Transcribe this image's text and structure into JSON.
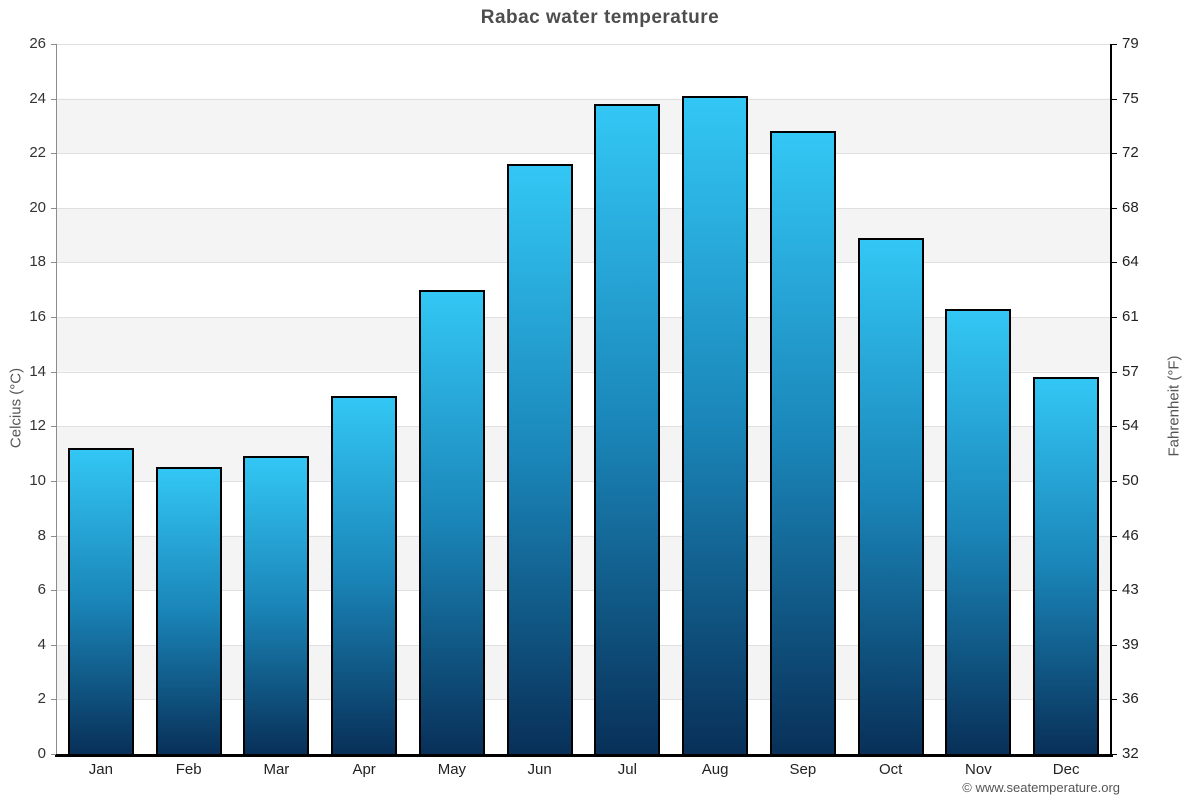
{
  "chart_data": {
    "type": "bar",
    "title": "Rabac water temperature",
    "categories": [
      "Jan",
      "Feb",
      "Mar",
      "Apr",
      "May",
      "Jun",
      "Jul",
      "Aug",
      "Sep",
      "Oct",
      "Nov",
      "Dec"
    ],
    "values_celsius": [
      11.2,
      10.5,
      10.9,
      13.1,
      17.0,
      21.6,
      23.8,
      24.1,
      22.8,
      18.9,
      16.3,
      13.8
    ],
    "ylabel_left": "Celcius (°C)",
    "ylabel_right": "Fahrenheit (°F)",
    "yticks_left": [
      0,
      2,
      4,
      6,
      8,
      10,
      12,
      14,
      16,
      18,
      20,
      22,
      24,
      26
    ],
    "yticks_right": [
      32,
      36,
      39,
      43,
      46,
      50,
      54,
      57,
      61,
      64,
      68,
      72,
      75,
      79
    ],
    "ylim": [
      0,
      26
    ],
    "grid": "alternating horizontal bands every 2°C with light gridlines",
    "legend": "none",
    "colors": {
      "bar_gradient": [
        "#33c7f5",
        "#1a85b8",
        "#083058"
      ],
      "bar_border": "#010101",
      "band_gray": "#f4f4f4",
      "gridline": "#e0e0e0",
      "title_text": "#4d4d4d",
      "axis_text": "#333333"
    }
  },
  "footer": {
    "copyright": "© www.seatemperature.org"
  }
}
